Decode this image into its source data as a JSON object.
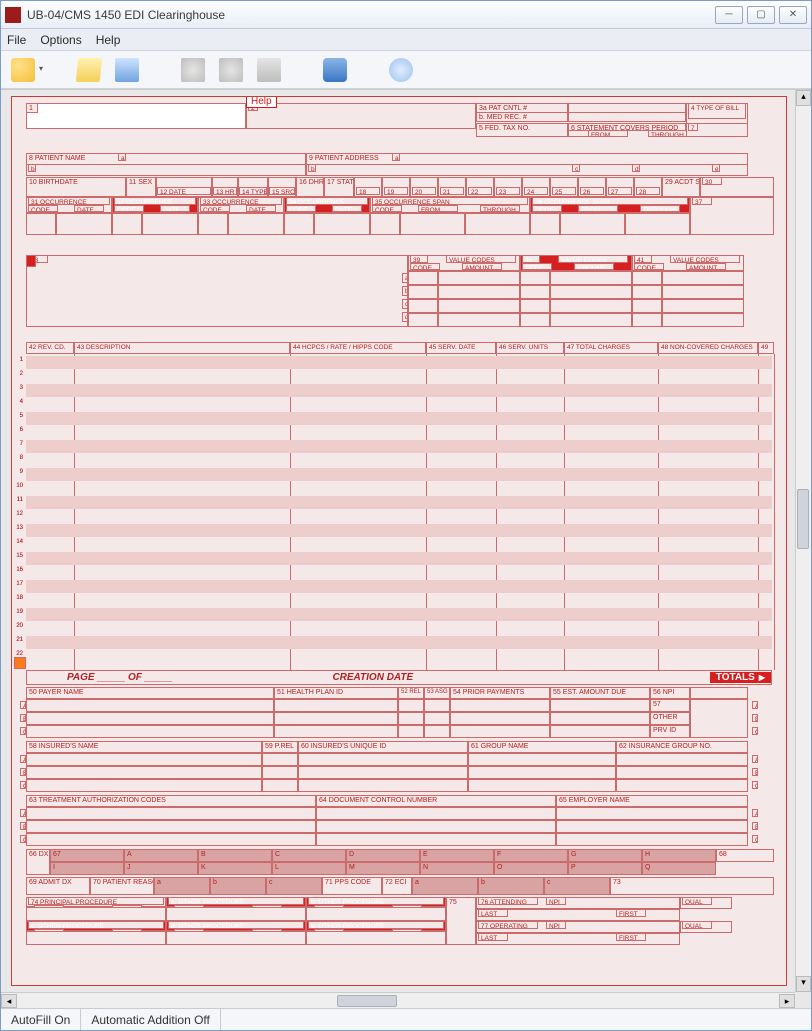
{
  "window": {
    "title": "UB-04/CMS 1450 EDI Clearinghouse"
  },
  "menu": {
    "file": "File",
    "options": "Options",
    "help": "Help"
  },
  "toolbar": {
    "icons": [
      "new-doc",
      "open",
      "save",
      "print-preview",
      "print",
      "print-batch",
      "database",
      "help"
    ]
  },
  "help_button": "Help",
  "status": {
    "autofill": "AutoFill On",
    "autoadd": "Automatic Addition Off"
  },
  "form": {
    "colors": {
      "line": "#cc6b6b",
      "red_fill": "#d61f1f",
      "bg": "#f5e8e8",
      "stripe": "#eecdcd",
      "text": "#b22222"
    },
    "fields": {
      "1": "1",
      "2": "2",
      "3a": "3a PAT CNTL #",
      "3b": "b. MED REC. #",
      "4": "4    TYPE OF BILL",
      "5": "5 FED. TAX NO.",
      "6": "6      STATEMENT  COVERS  PERIOD",
      "6from": "FROM",
      "6thru": "THROUGH",
      "7": "7",
      "8": "8 PATIENT  NAME",
      "8a": "a",
      "8b": "b",
      "9": "9 PATIENT  ADDRESS",
      "9a": "a",
      "9b": "b",
      "9c": "c",
      "9d": "d",
      "9e": "e",
      "10": "10 BIRTHDATE",
      "11": "11 SEX",
      "admission": "ADMISSION",
      "12": "12       DATE",
      "13": "13 HR",
      "14": "14 TYPE",
      "15": "15 SRC",
      "16": "16 DHR",
      "17": "17 STAT",
      "condition": "CONDITION CODES",
      "18": "18",
      "19": "19",
      "20": "20",
      "21": "21",
      "22": "22",
      "23": "23",
      "24": "24",
      "25": "25",
      "26": "26",
      "27": "27",
      "28": "28",
      "29": "29 ACDT STATE",
      "30": "30",
      "31": "31       OCCURRENCE",
      "31code": "CODE",
      "31date": "DATE",
      "32": "32       OCCURRENCE",
      "33": "33       OCCURRENCE",
      "34": "34       OCCURRENCE",
      "35": "35               OCCURRENCE  SPAN",
      "35from": "FROM",
      "35thru": "THROUGH",
      "36": "36               OCCURRENCE  SPAN",
      "37": "37",
      "38": "38",
      "39": "39",
      "40": "40",
      "41": "41",
      "valcode": "VALUE  CODES",
      "valcode_code": "CODE",
      "valcode_amt": "AMOUNT",
      "val_rows": [
        "a",
        "b",
        "c",
        "d"
      ],
      "42": "42 REV. CD.",
      "43": "43 DESCRIPTION",
      "44": "44 HCPCS / RATE / HIPPS CODE",
      "45": "45 SERV. DATE",
      "46": "46 SERV. UNITS",
      "47": "47 TOTAL CHARGES",
      "48": "48 NON-COVERED CHARGES",
      "49": "49",
      "svc_rows": 22,
      "page": "PAGE _____    OF _____",
      "creation": "CREATION DATE",
      "totals": "TOTALS",
      "50": "50 PAYER  NAME",
      "51": "51 HEALTH PLAN ID",
      "52": "52 REL INFO",
      "53": "53 ASG BEN",
      "54": "54 PRIOR PAYMENTS",
      "55": "55 EST. AMOUNT DUE",
      "56": "56 NPI",
      "57": "57",
      "other": "OTHER",
      "prvid": "PRV ID",
      "abc": [
        "A",
        "B",
        "C"
      ],
      "58": "58 INSURED'S NAME",
      "59": "59 P.REL",
      "60": "60 INSURED'S UNIQUE ID",
      "61": "61 GROUP NAME",
      "62": "62 INSURANCE GROUP NO.",
      "63": "63 TREATMENT  AUTHORIZATION  CODES",
      "64": "64 DOCUMENT CONTROL NUMBER",
      "65": "65 EMPLOYER NAME",
      "66": "66 DX",
      "67": "67",
      "dxletters": [
        "A",
        "B",
        "C",
        "D",
        "E",
        "F",
        "G",
        "H",
        "I",
        "J",
        "K",
        "L",
        "M",
        "N",
        "O",
        "P",
        "Q"
      ],
      "68": "68",
      "69": "69 ADMIT DX",
      "70": "70 PATIENT REASON DX",
      "70abc": [
        "a",
        "b",
        "c"
      ],
      "71": "71 PPS CODE",
      "72": "72 ECI",
      "72abc": [
        "a",
        "b",
        "c"
      ],
      "73": "73",
      "74": "74       PRINCIPAL PROCEDURE",
      "74code": "CODE",
      "74date": "DATE",
      "74a": "a.         OTHER PROCEDURE",
      "74b": "b.         OTHER PROCEDURE",
      "74c": "c.         OTHER PROCEDURE",
      "74d": "d.         OTHER PROCEDURE",
      "74e": "e.         OTHER PROCEDURE",
      "75": "75",
      "76": "76 ATTENDING",
      "77": "77 OPERATING",
      "npi": "NPI",
      "qual": "QUAL",
      "last": "LAST",
      "first": "FIRST"
    }
  }
}
